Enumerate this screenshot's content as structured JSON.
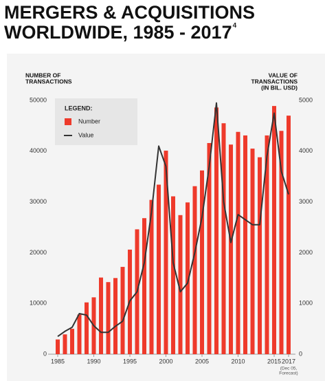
{
  "chart_data": {
    "type": "bar-line",
    "title": [
      "MERGERS & ACQUISITIONS",
      "WORLDWIDE, 1985 - 2017"
    ],
    "title_footnote": "4",
    "y_label": [
      "NUMBER OF",
      "TRANSACTIONS"
    ],
    "y2_label": [
      "VALUE OF",
      "TRANSACTIONS",
      "(IN BIL. USD)"
    ],
    "legend_title": "LEGEND:",
    "x": [
      1985,
      1986,
      1987,
      1988,
      1989,
      1990,
      1991,
      1992,
      1993,
      1994,
      1995,
      1996,
      1997,
      1998,
      1999,
      2000,
      2001,
      2002,
      2003,
      2004,
      2005,
      2006,
      2007,
      2008,
      2009,
      2010,
      2011,
      2012,
      2013,
      2014,
      2015,
      2016,
      2017
    ],
    "xlim": [
      1985,
      2017
    ],
    "xticks": [
      1985,
      1990,
      1995,
      2000,
      2005,
      2010,
      2015,
      2017
    ],
    "xtick_note": [
      "(Dec 05,",
      "Forecast)"
    ],
    "series": [
      {
        "name": "Number",
        "color": "#ee3a2b",
        "axis": "y",
        "values": [
          2900,
          3900,
          5000,
          7800,
          10200,
          11200,
          15100,
          14200,
          15000,
          17200,
          20600,
          24600,
          26800,
          30400,
          33400,
          40100,
          31100,
          27400,
          29900,
          33100,
          36200,
          41600,
          48600,
          45500,
          41300,
          43800,
          43100,
          40500,
          38800,
          43100,
          48900,
          44000,
          47000
        ]
      },
      {
        "name": "Value",
        "color": "#333333",
        "axis": "y2",
        "values": [
          350,
          450,
          530,
          800,
          770,
          560,
          430,
          430,
          550,
          650,
          1050,
          1230,
          1800,
          2800,
          4100,
          3700,
          1800,
          1230,
          1400,
          2000,
          2700,
          3700,
          4950,
          3000,
          2200,
          2750,
          2650,
          2550,
          2550,
          3900,
          4750,
          3600,
          3150
        ]
      }
    ],
    "ylim": [
      0,
      50000
    ],
    "yticks": [
      0,
      10000,
      20000,
      30000,
      40000,
      50000
    ],
    "y2lim": [
      0,
      5000
    ],
    "y2ticks": [
      0,
      1000,
      2000,
      3000,
      4000,
      5000
    ]
  }
}
